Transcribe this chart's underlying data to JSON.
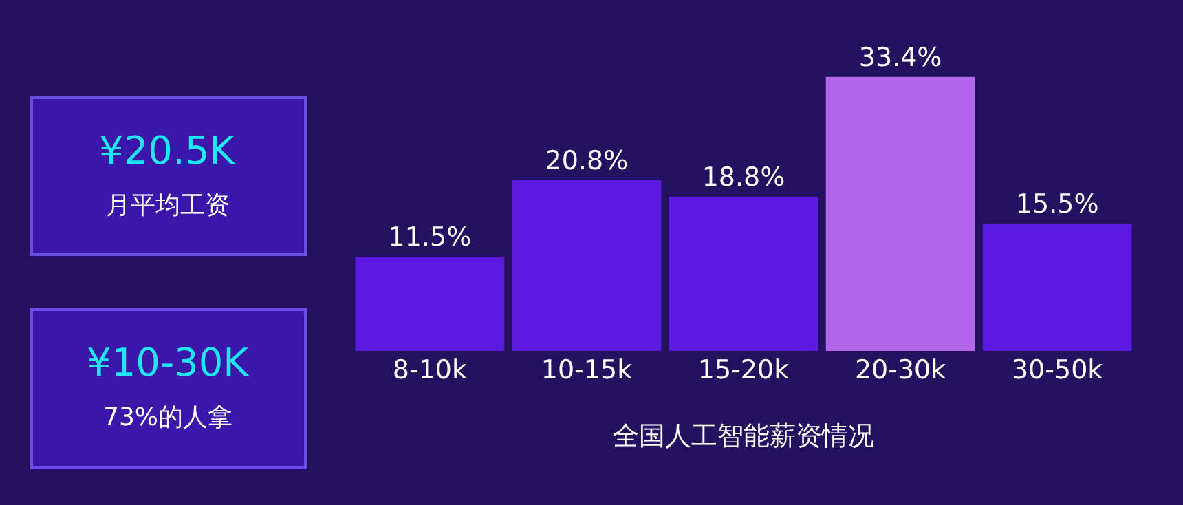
{
  "chart_data": {
    "type": "bar",
    "categories": [
      "8-10k",
      "10-15k",
      "15-20k",
      "20-30k",
      "30-50k"
    ],
    "values": [
      11.5,
      20.8,
      18.8,
      33.4,
      15.5
    ],
    "colors": [
      "#5a1ae0",
      "#5a1ae0",
      "#5a1ae0",
      "#b266e8",
      "#5a1ae0"
    ],
    "value_labels": [
      "11.5%",
      "20.8%",
      "18.8%",
      "33.4%",
      "15.5%"
    ],
    "xlabel": "全国人工智能薪资情况",
    "annotations": [
      "¥20.5K",
      "月平均工资",
      "¥10-30K",
      "73%的人拿"
    ],
    "grid": false
  }
}
